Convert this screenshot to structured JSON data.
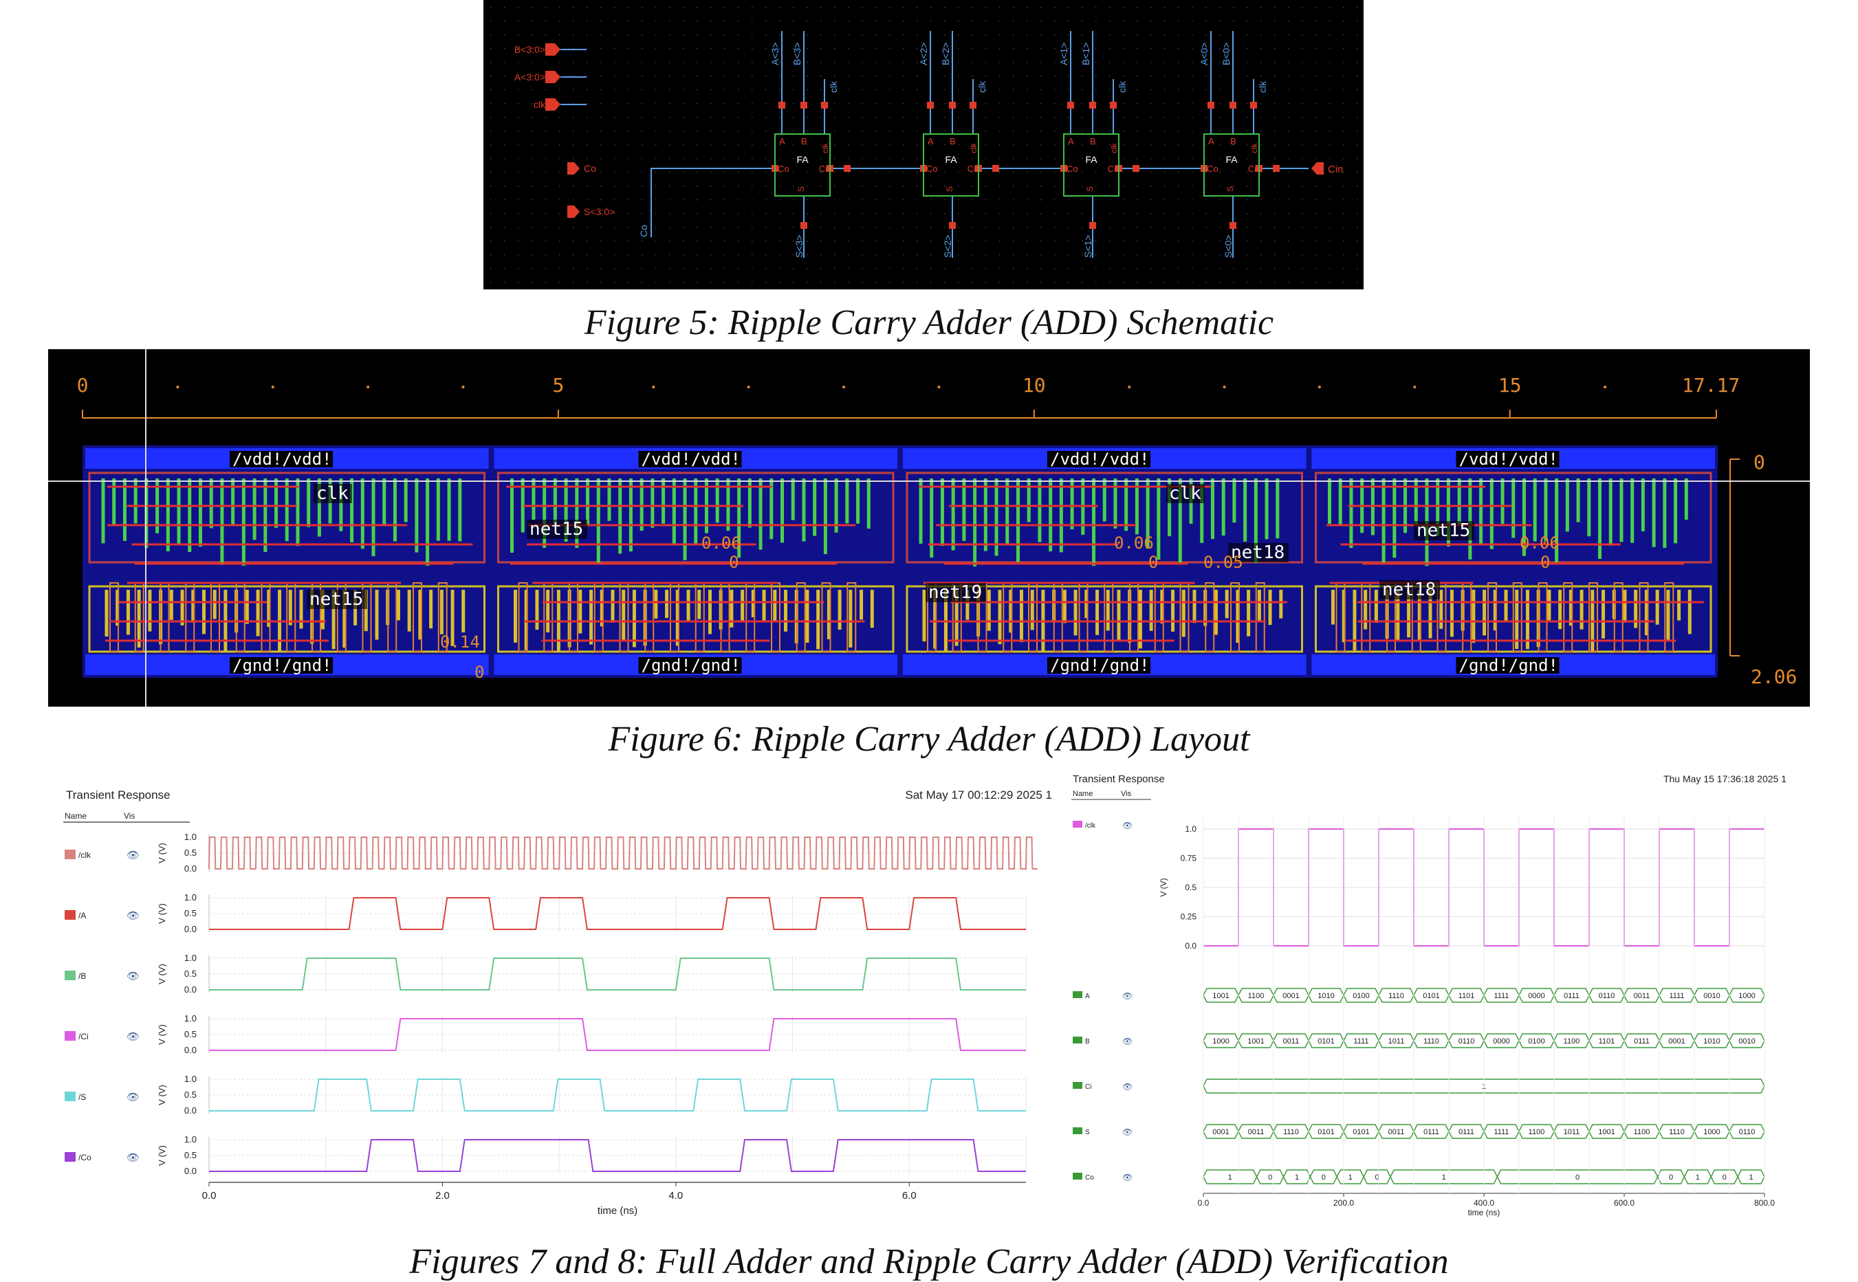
{
  "figure5": {
    "caption": "Figure 5: Ripple Carry Adder (ADD) Schematic",
    "pins_in": [
      "B<3:0>",
      "A<3:0>",
      "clk"
    ],
    "pins_out": [
      "Co",
      "S<3:0>"
    ],
    "cin_pin": "Cin",
    "co_net": "Co",
    "blocks": [
      {
        "a": "A<3>",
        "b": "B<3>",
        "s": "S<3>"
      },
      {
        "a": "A<2>",
        "b": "B<2>",
        "s": "S<2>"
      },
      {
        "a": "A<1>",
        "b": "B<1>",
        "s": "S<1>"
      },
      {
        "a": "A<0>",
        "b": "B<0>",
        "s": "S<0>"
      }
    ],
    "block_labels": {
      "title": "FA",
      "a": "A",
      "b": "B",
      "co": "Co",
      "ci": "Ci",
      "s": "S",
      "clk": "clk"
    }
  },
  "figure6": {
    "caption": "Figure 6: Ripple Carry Adder (ADD) Layout",
    "ruler_ticks": [
      "0",
      "5",
      "10",
      "15",
      "17.17"
    ],
    "vertical_ticks": [
      "0",
      "2.06"
    ],
    "rail_vdd": "/vdd!/vdd!",
    "rail_gnd": "/gnd!/gnd!",
    "net_labels": [
      "clk",
      "clk",
      "net15",
      "net15",
      "net15",
      "net18",
      "net18",
      "net19"
    ],
    "dim_labels": [
      "0.06",
      "0.06",
      "0.06",
      "0.05",
      "0.14",
      "0",
      "0",
      "0",
      "0"
    ]
  },
  "figure7": {
    "title": "Transient Response",
    "timestamp": "Sat May 17 00:12:29 2025  1",
    "col_name": "Name",
    "col_vis": "Vis",
    "signals": [
      "/clk",
      "/A",
      "/B",
      "/Ci",
      "/S",
      "/Co"
    ],
    "ylabel": "V (V)",
    "yticks": [
      "1.0",
      "0.5",
      "0.0"
    ],
    "xlabel": "time (ns)",
    "xticks": [
      "0.0",
      "2.0",
      "4.0",
      "6.0"
    ]
  },
  "figure8": {
    "title": "Transient Response",
    "timestamp": "Thu May 15 17:36:18 2025  1",
    "col_name": "Name",
    "col_vis": "Vis",
    "signals": [
      "/clk",
      "A",
      "B",
      "Ci",
      "S",
      "Co"
    ],
    "ylabel": "V (V)",
    "yticks": [
      "1.0",
      "0.75",
      "0.5",
      "0.25",
      "0.0"
    ],
    "xlabel": "time (ns)",
    "xticks": [
      "0.0",
      "200.0",
      "400.0",
      "600.0",
      "800.0"
    ],
    "buses": {
      "A": [
        "1001",
        "1100",
        "0001",
        "1010",
        "0100",
        "1110",
        "0101",
        "1101",
        "1111",
        "0000",
        "0111",
        "0110",
        "0011",
        "1111",
        "0010",
        "1000"
      ],
      "B": [
        "1000",
        "1001",
        "0011",
        "0101",
        "1111",
        "1011",
        "1110",
        "0110",
        "0000",
        "0100",
        "1100",
        "1101",
        "0111",
        "0001",
        "1010",
        "0010"
      ],
      "Ci": [
        "1"
      ],
      "S": [
        "0001",
        "0011",
        "1110",
        "0101",
        "0101",
        "0011",
        "0111",
        "0111",
        "1111",
        "1100",
        "1011",
        "1001",
        "1100",
        "1110",
        "1000",
        "0110"
      ],
      "Co": [
        "1",
        "0",
        "1",
        "0",
        "1",
        "0",
        "1",
        "0",
        "0",
        "1",
        "0",
        "1"
      ]
    },
    "co_widths": [
      1,
      0.5,
      0.5,
      0.5,
      0.5,
      0.5,
      2,
      3,
      0.5,
      0.5,
      0.5,
      0.5
    ]
  },
  "caption_78": "Figures 7 and 8: Full Adder and Ripple Carry Adder (ADD) Verification",
  "colors": {
    "clk": "#d8837c",
    "A": "#d9453d",
    "B": "#6cc68a",
    "Ci": "#dd5de0",
    "S": "#6fd6d8",
    "Co": "#9a41d8",
    "bus": "#3a9a3a",
    "schematic_bg": "#000000",
    "wire": "#5aa0e8",
    "pin": "#e03a2a",
    "block": "#3fbf4a"
  }
}
